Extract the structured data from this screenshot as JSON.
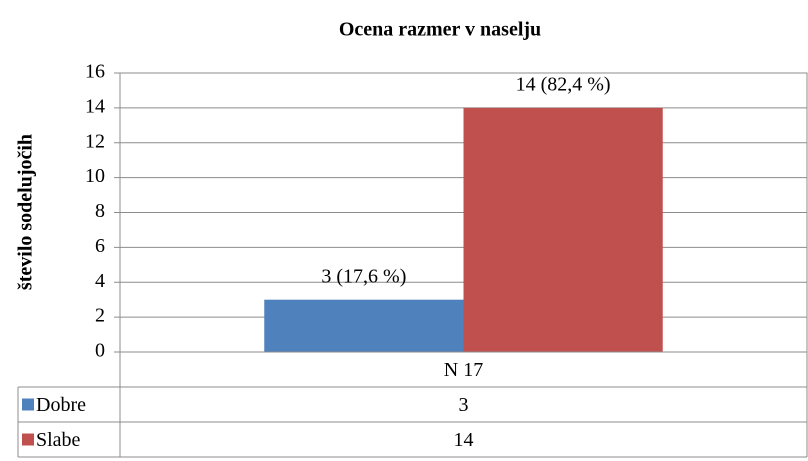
{
  "chart_data": {
    "type": "bar",
    "title": "Ocena razmer v naselju",
    "y_label": "število sodelujočih",
    "categories": [
      "N 17"
    ],
    "series": [
      {
        "name": "Dobre",
        "color": "#4f81bd",
        "values": [
          3
        ],
        "value_labels": [
          "3 (17,6 %)"
        ]
      },
      {
        "name": "Slabe",
        "color": "#c0504d",
        "values": [
          14
        ],
        "value_labels": [
          "14 (82,4 %)"
        ]
      }
    ],
    "ylim": [
      0,
      16
    ],
    "yticks": [
      0,
      2,
      4,
      6,
      8,
      10,
      12,
      14,
      16
    ],
    "grid": true,
    "data_table": true
  }
}
